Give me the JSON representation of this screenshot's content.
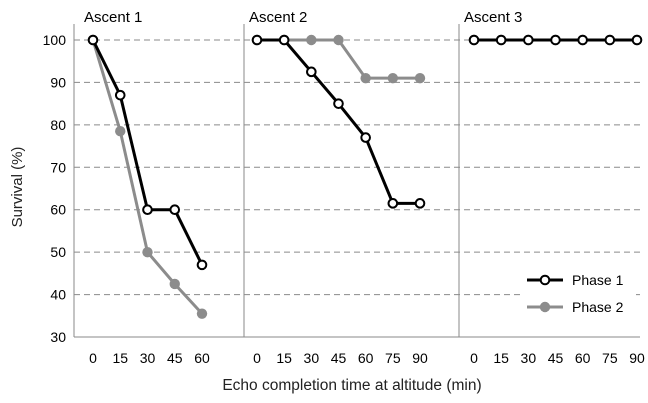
{
  "chart_data": {
    "type": "line",
    "xlabel": "Echo completion time at altitude (min)",
    "ylabel": "Survival (%)",
    "ylim": [
      30,
      100
    ],
    "yticks": [
      30,
      40,
      50,
      60,
      70,
      80,
      90,
      100
    ],
    "grid": true,
    "legend_position": "bottom-right",
    "series_style": {
      "Phase 1": {
        "color": "#000000",
        "marker": "open-circle"
      },
      "Phase 2": {
        "color": "#8c8c8c",
        "marker": "filled-circle"
      }
    },
    "panels": [
      {
        "title": "Ascent 1",
        "x": [
          0,
          15,
          30,
          45,
          60
        ],
        "series": [
          {
            "name": "Phase 1",
            "values": [
              100,
              87,
              60,
              60,
              47
            ]
          },
          {
            "name": "Phase 2",
            "values": [
              100,
              78.5,
              50,
              42.5,
              35.5
            ]
          }
        ]
      },
      {
        "title": "Ascent 2",
        "x": [
          0,
          15,
          30,
          45,
          60,
          75,
          90
        ],
        "series": [
          {
            "name": "Phase 1",
            "values": [
              100,
              100,
              92.5,
              85,
              77,
              61.5,
              61.5
            ]
          },
          {
            "name": "Phase 2",
            "values": [
              100,
              100,
              100,
              100,
              91,
              91,
              91
            ]
          }
        ]
      },
      {
        "title": "Ascent 3",
        "x": [
          0,
          15,
          30,
          45,
          60,
          75,
          90
        ],
        "series": [
          {
            "name": "Phase 1",
            "values": [
              100,
              100,
              100,
              100,
              100,
              100,
              100
            ]
          },
          {
            "name": "Phase 2",
            "values": [
              100,
              100,
              100,
              100,
              100,
              100,
              100
            ]
          }
        ]
      }
    ]
  }
}
